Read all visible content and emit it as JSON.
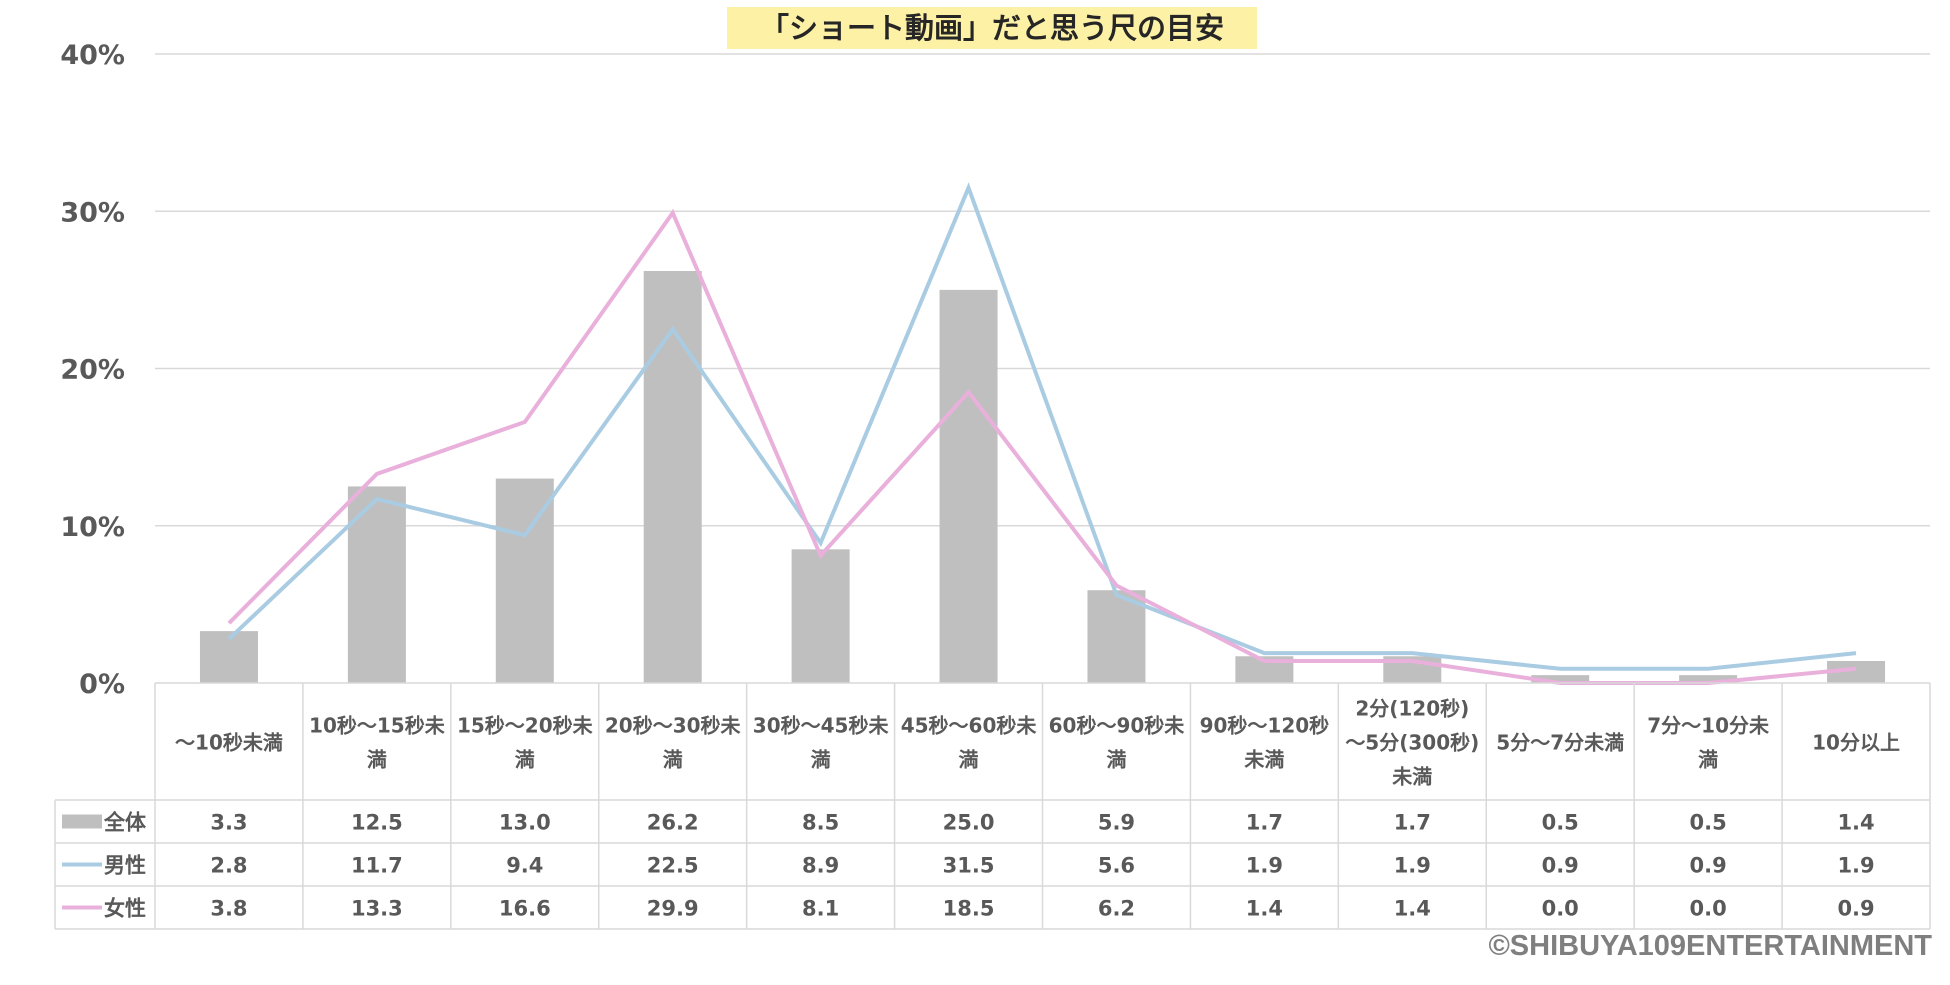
{
  "chart_data": {
    "type": "bar",
    "title": "「ショート動画」だと思う尺の目安",
    "ylim": [
      0,
      40
    ],
    "yticks": [
      "0%",
      "10%",
      "20%",
      "30%",
      "40%"
    ],
    "grid": true,
    "categories": [
      [
        "～10秒未満"
      ],
      [
        "10秒～15秒未",
        "満"
      ],
      [
        "15秒～20秒未",
        "満"
      ],
      [
        "20秒～30秒未",
        "満"
      ],
      [
        "30秒～45秒未",
        "満"
      ],
      [
        "45秒～60秒未",
        "満"
      ],
      [
        "60秒～90秒未",
        "満"
      ],
      [
        "90秒～120秒",
        "未満"
      ],
      [
        "2分(120秒)",
        "～5分(300秒)",
        "未満"
      ],
      [
        "5分～7分未満"
      ],
      [
        "7分～10分未",
        "満"
      ],
      [
        "10分以上"
      ]
    ],
    "series": [
      {
        "name": "全体",
        "kind": "bar",
        "color": "#bfbfbf",
        "values": [
          3.3,
          12.5,
          13.0,
          26.2,
          8.5,
          25.0,
          5.9,
          1.7,
          1.7,
          0.5,
          0.5,
          1.4
        ],
        "labels": [
          "3.3",
          "12.5",
          "13.0",
          "26.2",
          "8.5",
          "25.0",
          "5.9",
          "1.7",
          "1.7",
          "0.5",
          "0.5",
          "1.4"
        ]
      },
      {
        "name": "男性",
        "kind": "line",
        "color": "#a9cce3",
        "values": [
          2.8,
          11.7,
          9.4,
          22.5,
          8.9,
          31.5,
          5.6,
          1.9,
          1.9,
          0.9,
          0.9,
          1.9
        ],
        "labels": [
          "2.8",
          "11.7",
          "9.4",
          "22.5",
          "8.9",
          "31.5",
          "5.6",
          "1.9",
          "1.9",
          "0.9",
          "0.9",
          "1.9"
        ]
      },
      {
        "name": "女性",
        "kind": "line",
        "color": "#e9b0db",
        "values": [
          3.8,
          13.3,
          16.6,
          29.9,
          8.1,
          18.5,
          6.2,
          1.4,
          1.4,
          0.0,
          0.0,
          0.9
        ],
        "labels": [
          "3.8",
          "13.3",
          "16.6",
          "29.9",
          "8.1",
          "18.5",
          "6.2",
          "1.4",
          "1.4",
          "0.0",
          "0.0",
          "0.9"
        ]
      }
    ]
  },
  "copyright": "©SHIBUYA109ENTERTAINMENT"
}
